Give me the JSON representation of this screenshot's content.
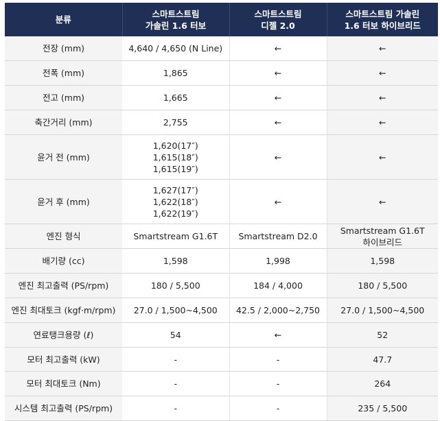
{
  "headers": [
    "분류",
    "스마트스트림\n가솔린 1.6 터보",
    "스마트스트림\n디젤 2.0",
    "스마트스트림 가솔린\n1.6 터보 하이브리드"
  ],
  "rows": [
    {
      "label": "전장 (mm)",
      "values": [
        "4,640 / 4,650 (N Line)",
        "←",
        "←"
      ]
    },
    {
      "label": "전폭 (mm)",
      "values": [
        "1,865",
        "←",
        "←"
      ]
    },
    {
      "label": "전고 (mm)",
      "values": [
        "1,665",
        "←",
        "←"
      ]
    },
    {
      "label": "축간거리 (mm)",
      "values": [
        "2,755",
        "←",
        "←"
      ]
    },
    {
      "label": "윤거 전 (mm)",
      "values": [
        "1,620(17″)\n1,615(18″)\n1,615(19″)",
        "←",
        "←"
      ]
    },
    {
      "label": "윤거 후 (mm)",
      "values": [
        "1,627(17″)\n1,622(18″)\n1,622(19″)",
        "←",
        "←"
      ]
    },
    {
      "label": "엔진 형식",
      "values": [
        "Smartstream G1.6T",
        "Smartstream D2.0",
        "Smartstream G1.6T\n하이브리드"
      ]
    },
    {
      "label": "배기량 (cc)",
      "values": [
        "1,598",
        "1,998",
        "1,598"
      ]
    },
    {
      "label": "엔진 최고출력 (PS/rpm)",
      "values": [
        "180 / 5,500",
        "184 / 4,000",
        "180 / 5,500"
      ]
    },
    {
      "label": "엔진 최대토크 (kgf·m/rpm)",
      "values": [
        "27.0 / 1,500~4,500",
        "42.5 / 2,000~2,750",
        "27.0 / 1,500~4,500"
      ]
    },
    {
      "label": "연료탱크용량 (ℓ)",
      "values": [
        "54",
        "←",
        "52"
      ]
    },
    {
      "label": "모터 최고출력 (kW)",
      "values": [
        "-",
        "-",
        "47.7"
      ]
    },
    {
      "label": "모터 최대토크 (Nm)",
      "values": [
        "-",
        "-",
        "264"
      ]
    },
    {
      "label": "시스템 최고출력 (PS/rpm)",
      "values": [
        "-",
        "-",
        "235 / 5,500"
      ]
    }
  ]
}
